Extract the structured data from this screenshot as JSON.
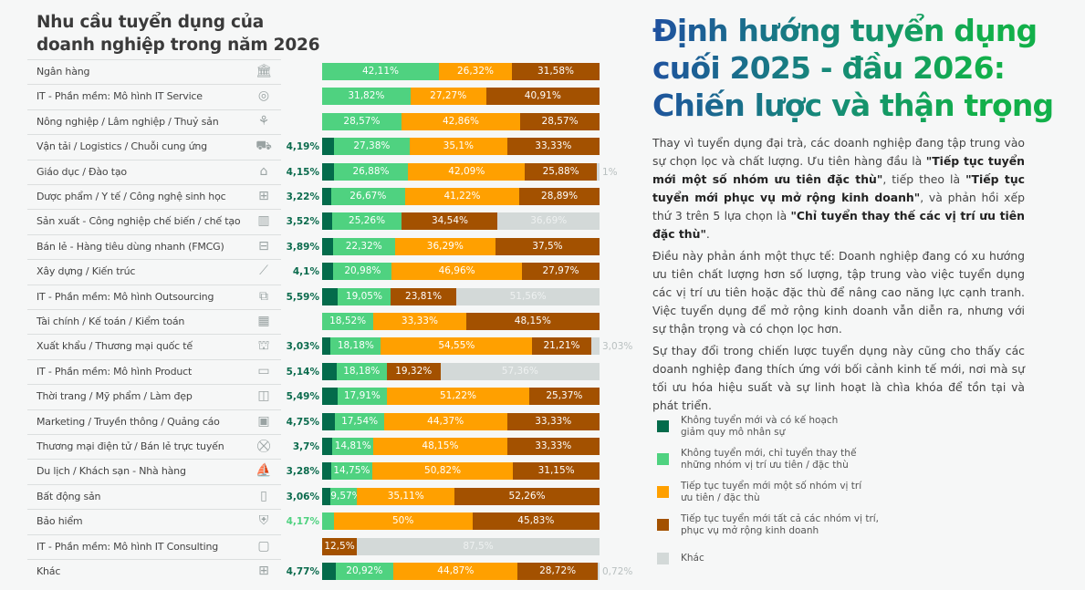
{
  "chart_data": {
    "type": "bar",
    "orientation": "horizontal",
    "stacked": true,
    "normalized": true,
    "title": "Nhu cầu tuyển dụng của doanh nghiệp trong năm 2026",
    "series": [
      {
        "name": "Không tuyển mới và có kế hoạch giảm quy mô nhân sự",
        "color": "#046b4b"
      },
      {
        "name": "Không tuyển mới, chỉ tuyển thay thế những nhóm vị trí ưu tiên / đặc thù",
        "color": "#4fd280"
      },
      {
        "name": "Tiếp tục tuyển mới một số nhóm vị trí ưu tiên / đặc thù",
        "color": "#ffa000"
      },
      {
        "name": "Tiếp tục tuyển mới tất cả các nhóm vị trí, phục vụ mở rộng kinh doanh",
        "color": "#a35100"
      },
      {
        "name": "Khác",
        "color": "#d3d9d8"
      }
    ],
    "categories": [
      {
        "label": "Ngân hàng",
        "icon": "bank-icon",
        "values": [
          0,
          42.11,
          26.32,
          31.58,
          0
        ],
        "labels": [
          "",
          "42,11%",
          "26,32%",
          "31,58%",
          ""
        ]
      },
      {
        "label": "IT - Phần mềm: Mô hình IT Service",
        "icon": "globe-icon",
        "values": [
          0,
          31.82,
          27.27,
          40.91,
          0
        ],
        "labels": [
          "",
          "31,82%",
          "27,27%",
          "40,91%",
          ""
        ]
      },
      {
        "label": "Nông nghiệp / Lâm nghiệp / Thuỷ sản",
        "icon": "sprout-icon",
        "values": [
          0,
          28.57,
          42.86,
          28.57,
          0
        ],
        "labels": [
          "",
          "28,57%",
          "42,86%",
          "28,57%",
          ""
        ]
      },
      {
        "label": "Vận tải / Logistics / Chuỗi cung ứng",
        "icon": "truck-icon",
        "values": [
          4.19,
          27.38,
          35.1,
          33.33,
          0
        ],
        "labels": [
          "4,19%",
          "27,38%",
          "35,1%",
          "33,33%",
          ""
        ]
      },
      {
        "label": "Giáo dục / Đào tạo",
        "icon": "graduation-cap-icon",
        "values": [
          4.15,
          26.88,
          42.09,
          25.88,
          1
        ],
        "labels": [
          "4,15%",
          "26,88%",
          "42,09%",
          "25,88%",
          "1%"
        ]
      },
      {
        "label": "Dược phẩm / Y tế / Công nghệ sinh học",
        "icon": "medical-kit-icon",
        "values": [
          3.22,
          26.67,
          41.22,
          28.89,
          0
        ],
        "labels": [
          "3,22%",
          "26,67%",
          "41,22%",
          "28,89%",
          ""
        ]
      },
      {
        "label": "Sản xuất - Công nghiệp chế biến / chế tạo",
        "icon": "factory-icon",
        "values": [
          3.52,
          25.26,
          0,
          34.54,
          36.69
        ],
        "labels": [
          "3,52%",
          "25,26%",
          "",
          "34,54%",
          "36,69%"
        ]
      },
      {
        "label": "Bán lẻ - Hàng tiêu dùng nhanh (FMCG)",
        "icon": "box-icon",
        "values": [
          3.89,
          22.32,
          36.29,
          37.5,
          0
        ],
        "labels": [
          "3,89%",
          "22,32%",
          "36,29%",
          "37,5%",
          ""
        ]
      },
      {
        "label": "Xây dựng / Kiến trúc",
        "icon": "stairs-icon",
        "values": [
          4.1,
          20.98,
          46.96,
          27.97,
          0
        ],
        "labels": [
          "4,1%",
          "20,98%",
          "46,96%",
          "27,97%",
          ""
        ]
      },
      {
        "label": "IT - Phần mềm: Mô hình Outsourcing",
        "icon": "outsourcing-icon",
        "values": [
          5.59,
          19.05,
          0,
          23.81,
          51.56
        ],
        "labels": [
          "5,59%",
          "19,05%",
          "",
          "23,81%",
          "51,56%"
        ]
      },
      {
        "label": "Tài chính / Kế toán / Kiểm toán",
        "icon": "calculator-icon",
        "values": [
          0,
          18.52,
          33.33,
          48.15,
          0
        ],
        "labels": [
          "",
          "18,52%",
          "33,33%",
          "48,15%",
          ""
        ]
      },
      {
        "label": "Xuất khẩu / Thương mại quốc tế",
        "icon": "cargo-icon",
        "values": [
          3.03,
          18.18,
          54.55,
          21.21,
          3.03
        ],
        "labels": [
          "3,03%",
          "18,18%",
          "54,55%",
          "21,21%",
          "3,03%"
        ]
      },
      {
        "label": "IT - Phần mềm: Mô hình Product",
        "icon": "laptop-icon",
        "values": [
          5.14,
          18.18,
          0,
          19.32,
          57.36
        ],
        "labels": [
          "5,14%",
          "18,18%",
          "",
          "19,32%",
          "57,36%"
        ]
      },
      {
        "label": "Thời trang / Mỹ phẩm / Làm đẹp",
        "icon": "shirt-icon",
        "values": [
          5.49,
          17.91,
          51.22,
          25.37,
          0
        ],
        "labels": [
          "5,49%",
          "17,91%",
          "51,22%",
          "25,37%",
          ""
        ]
      },
      {
        "label": "Marketing / Truyền thông / Quảng cáo",
        "icon": "film-icon",
        "values": [
          4.75,
          17.54,
          44.37,
          33.33,
          0
        ],
        "labels": [
          "4,75%",
          "17,54%",
          "44,37%",
          "33,33%",
          ""
        ]
      },
      {
        "label": "Thương mại điện tử / Bán lẻ trực tuyến",
        "icon": "cart-icon",
        "values": [
          3.7,
          14.81,
          48.15,
          33.33,
          0
        ],
        "labels": [
          "3,7%",
          "14,81%",
          "48,15%",
          "33,33%",
          ""
        ]
      },
      {
        "label": "Du lịch / Khách sạn - Nhà hàng",
        "icon": "sailboat-icon",
        "values": [
          3.28,
          14.75,
          50.82,
          31.15,
          0
        ],
        "labels": [
          "3,28%",
          "14,75%",
          "50,82%",
          "31,15%",
          ""
        ]
      },
      {
        "label": "Bất động sản",
        "icon": "building-icon",
        "values": [
          3.06,
          9.57,
          35.11,
          52.26,
          0
        ],
        "labels": [
          "3,06%",
          "9,57%",
          "35,11%",
          "52,26%",
          ""
        ]
      },
      {
        "label": "Bảo hiểm",
        "icon": "shield-icon",
        "values": [
          0,
          4.17,
          50,
          45.83,
          0
        ],
        "labels": [
          "",
          "4,17%",
          "50%",
          "45,83%",
          ""
        ]
      },
      {
        "label": "IT - Phần mềm: Mô hình IT Consulting",
        "icon": "chat-icon",
        "values": [
          0,
          0,
          0,
          12.5,
          87.5
        ],
        "labels": [
          "",
          "",
          "",
          "12,5%",
          "87,5%"
        ]
      },
      {
        "label": "Khác",
        "icon": "grid-icon",
        "values": [
          4.77,
          20.92,
          44.87,
          28.72,
          0.72
        ],
        "labels": [
          "4,77%",
          "20,92%",
          "44,87%",
          "28,72%",
          "0,72%"
        ]
      }
    ],
    "legend_position": "right"
  },
  "header": {
    "title_line1": "Nhu cầu tuyển dụng của",
    "title_line2": "doanh nghiệp trong năm 2026"
  },
  "article": {
    "title": "Định hướng tuyển dụng cuối 2025 - đầu 2026: Chiến lược và thận trọng",
    "p1": [
      {
        "t": "Thay vì tuyển dụng đại trà, các doanh nghiệp đang tập trung vào sự chọn lọc và chất lượng. Ưu tiên hàng đầu là ",
        "b": false
      },
      {
        "t": "\"Tiếp tục tuyển mới một số nhóm ưu tiên đặc thù\"",
        "b": true
      },
      {
        "t": ", tiếp theo là ",
        "b": false
      },
      {
        "t": "\"Tiếp tục tuyển mới phục vụ mở rộng kinh doanh\"",
        "b": true
      },
      {
        "t": ", và phản hồi xếp thứ 3 trên 5 lựa chọn là ",
        "b": false
      },
      {
        "t": "\"Chỉ tuyển thay thế các vị trí ưu tiên đặc thù\"",
        "b": true
      },
      {
        "t": ".",
        "b": false
      }
    ],
    "p2": "Điều này phản ánh một thực tế: Doanh nghiệp đang có xu hướng ưu tiên chất lượng hơn số lượng, tập trung vào việc tuyển dụng các vị trí ưu tiên hoặc đặc thù để nâng cao năng lực cạnh tranh. Việc tuyển dụng để mở rộng kinh doanh vẫn diễn ra, nhưng với sự thận trọng và có chọn lọc hơn.",
    "p3": "Sự thay đổi trong chiến lược tuyển dụng này cũng cho thấy các doanh nghiệp đang thích ứng với bối cảnh kinh tế mới, nơi mà sự tối ưu hóa hiệu suất và sự linh hoạt là chìa khóa để tồn tại và phát triển."
  }
}
